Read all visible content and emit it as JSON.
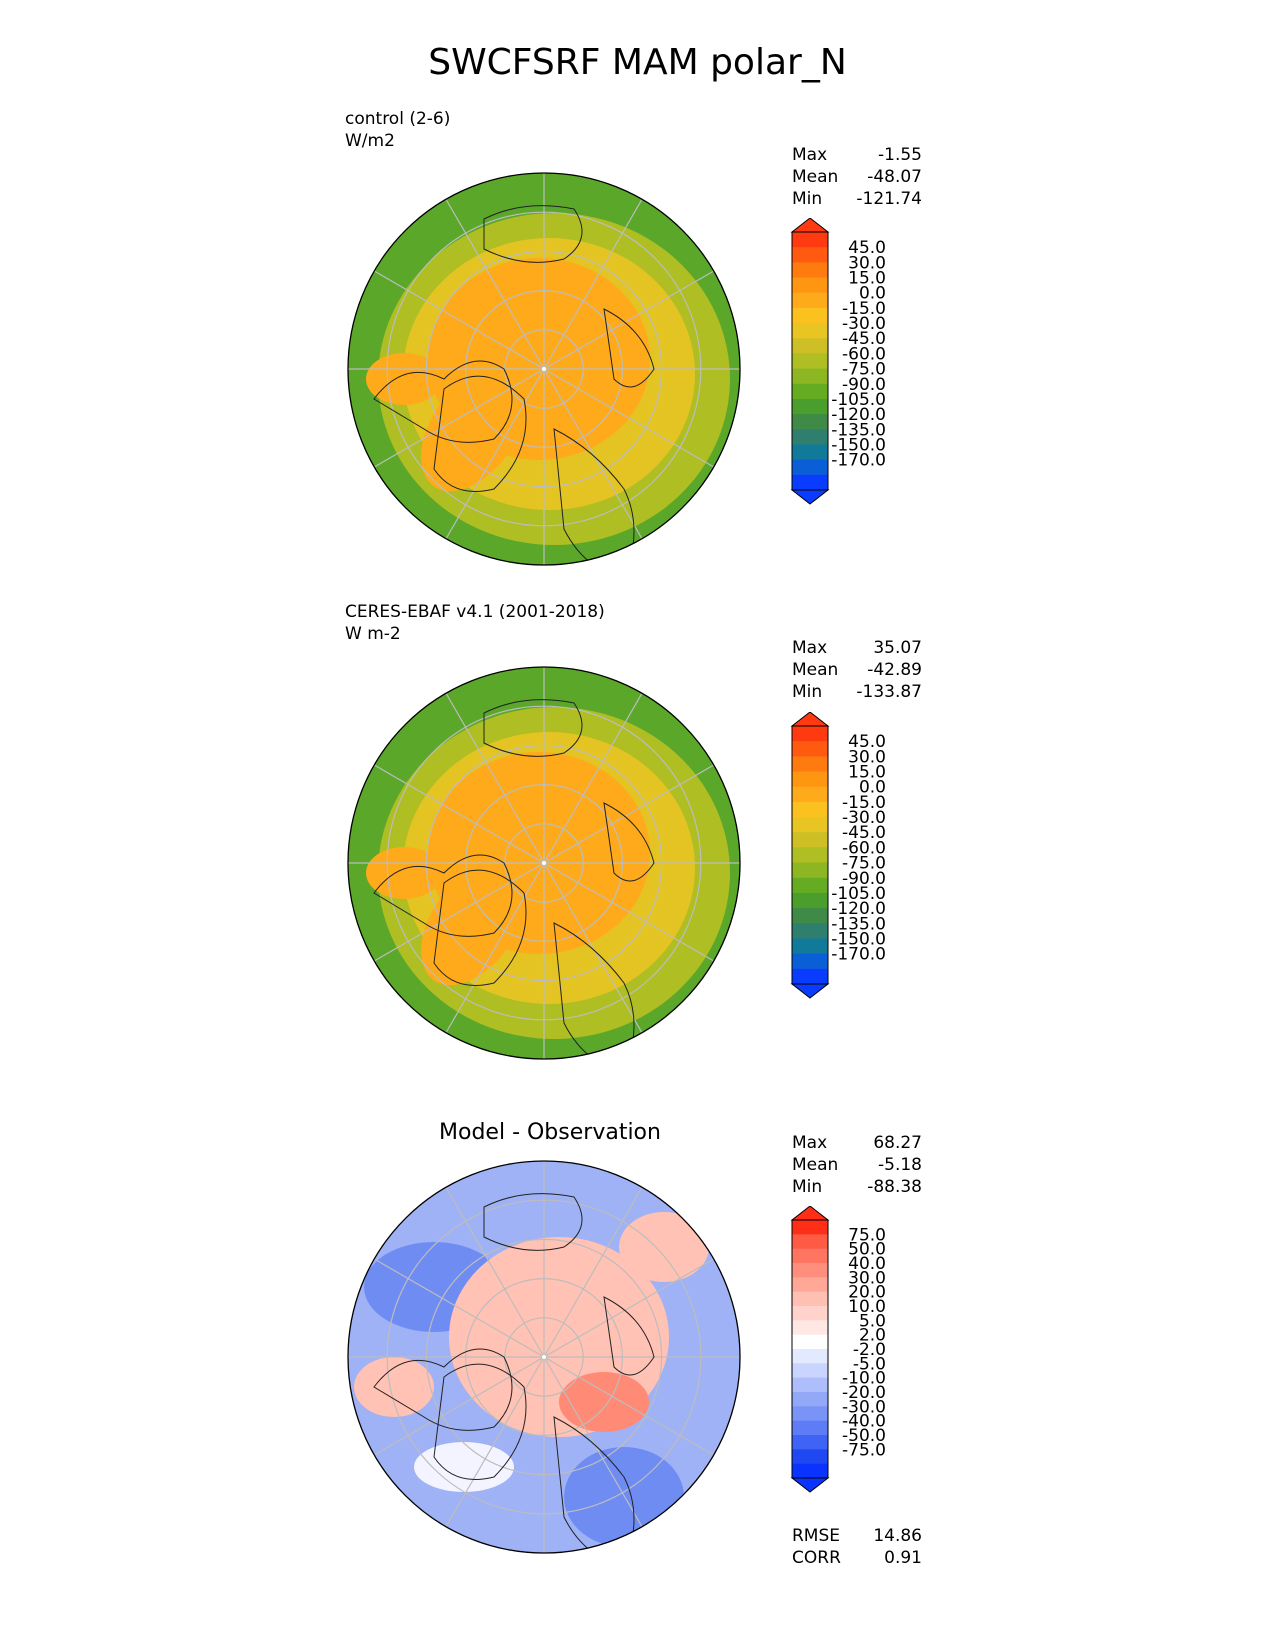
{
  "title": "SWCFSRF MAM polar_N",
  "panels": [
    {
      "label_line1": "control (2-6)",
      "label_line2": "W/m2",
      "stats": {
        "max_label": "Max",
        "max": "-1.55",
        "mean_label": "Mean",
        "mean": "-48.07",
        "min_label": "Min",
        "min": "-121.74"
      }
    },
    {
      "label_line1": "CERES-EBAF v4.1 (2001-2018)",
      "label_line2": "W m-2",
      "stats": {
        "max_label": "Max",
        "max": "35.07",
        "mean_label": "Mean",
        "mean": "-42.89",
        "min_label": "Min",
        "min": "-133.87"
      }
    },
    {
      "title": "Model - Observation",
      "stats": {
        "max_label": "Max",
        "max": "68.27",
        "mean_label": "Mean",
        "mean": "-5.18",
        "min_label": "Min",
        "min": "-88.38"
      },
      "metrics": {
        "rmse_label": "RMSE",
        "rmse": "14.86",
        "corr_label": "CORR",
        "corr": "0.91"
      }
    }
  ],
  "colorbars": {
    "field": {
      "ticks": [
        "45.0",
        "30.0",
        "15.0",
        "0.0",
        "-15.0",
        "-30.0",
        "-45.0",
        "-60.0",
        "-75.0",
        "-90.0",
        "-105.0",
        "-120.0",
        "-135.0",
        "-150.0",
        "-170.0"
      ],
      "colors": [
        "#ff3a10",
        "#ff5a0f",
        "#ff7a0f",
        "#ff9612",
        "#ffaa1a",
        "#fbc21f",
        "#e8c522",
        "#cdbf25",
        "#aebe23",
        "#8cb622",
        "#66ac22",
        "#4a9e2c",
        "#3e8a46",
        "#2f7f6e",
        "#117a9a",
        "#0a5fd6",
        "#0a3cff"
      ],
      "top_color": "#ff3a10",
      "bottom_color": "#0a3cff"
    },
    "diff": {
      "ticks": [
        "75.0",
        "50.0",
        "40.0",
        "30.0",
        "20.0",
        "10.0",
        "5.0",
        "2.0",
        "-2.0",
        "-5.0",
        "-10.0",
        "-20.0",
        "-30.0",
        "-40.0",
        "-50.0",
        "-75.0"
      ],
      "colors": [
        "#ff2e17",
        "#ff5a44",
        "#ff7561",
        "#ff8f7c",
        "#ffa898",
        "#ffbfb3",
        "#ffd3cb",
        "#ffe7e3",
        "#ffffff",
        "#e3e9ff",
        "#c9d4ff",
        "#aebdfb",
        "#94a8f8",
        "#7a93f7",
        "#5d7cf5",
        "#3f63f4",
        "#1f48f2",
        "#0b33ff"
      ],
      "top_color": "#ff2e17",
      "bottom_color": "#0b33ff"
    }
  },
  "map_colors": {
    "ocean_outer": "#5aa72a",
    "mid": "#aebe23",
    "yellow": "#e3c422",
    "core": "#ffaa1a",
    "coast": "#222222",
    "grid": "#bdbdbd",
    "diff_blue": "#9fb2f5",
    "diff_blue_dark": "#6f8cf2",
    "diff_pink": "#ffc2b5",
    "diff_red": "#ff8a75",
    "diff_white": "#f3f4ff"
  }
}
